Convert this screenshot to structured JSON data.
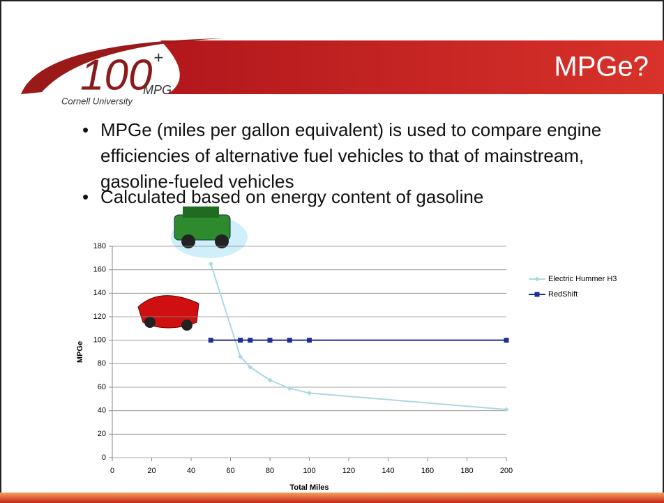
{
  "slide": {
    "title": "MPGe?",
    "logo_number": "100",
    "logo_plus": "+",
    "logo_mpg": "MPG",
    "logo_university": "Cornell University",
    "bullets": [
      "MPGe (miles per gallon equivalent) is used to compare engine efficiencies of alternative fuel vehicles to that of mainstream, gasoline-fueled vehicles",
      "Calculated based on energy content of gasoline"
    ]
  },
  "chart_data": {
    "type": "line",
    "x_label": "Total Miles",
    "y_label": "MPGe",
    "x": [
      50,
      65,
      70,
      80,
      90,
      100,
      200
    ],
    "series": [
      {
        "name": "Electric Hummer H3",
        "color": "#a9d9e2",
        "marker": "diamond",
        "values": [
          165,
          86,
          77,
          66,
          59,
          55,
          41
        ]
      },
      {
        "name": "RedShift",
        "color": "#1f2c99",
        "marker": "square",
        "values": [
          100,
          100,
          100,
          100,
          100,
          100,
          100
        ]
      }
    ],
    "xlim": [
      0,
      200
    ],
    "xticks": [
      0,
      20,
      40,
      60,
      80,
      100,
      120,
      140,
      160,
      180,
      200
    ],
    "ylim": [
      0,
      180
    ],
    "yticks": [
      0,
      20,
      40,
      60,
      80,
      100,
      120,
      140,
      160,
      180
    ],
    "grid": true,
    "legend": "right"
  }
}
